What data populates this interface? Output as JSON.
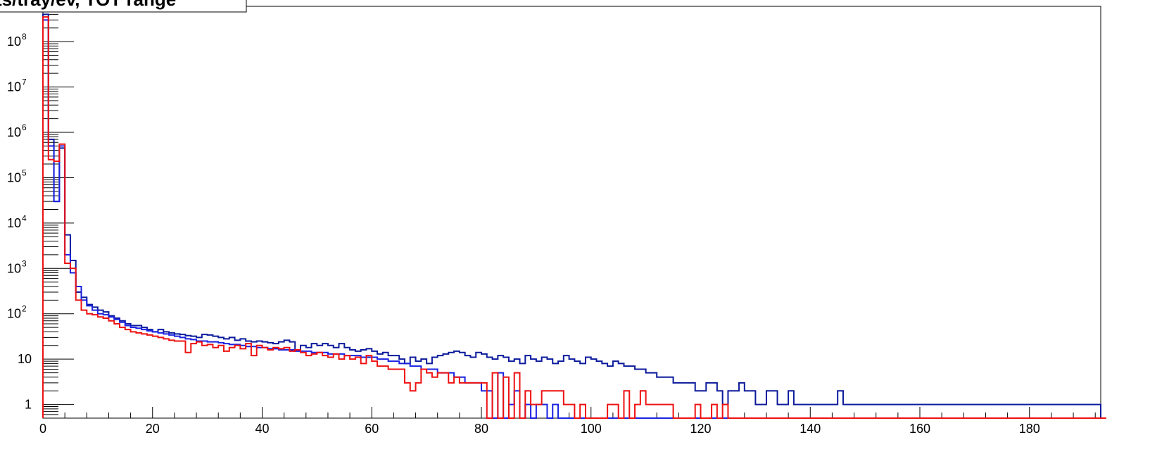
{
  "chart_data": {
    "type": "histogram",
    "title": "ts/tray/ev, TOT range",
    "xlabel": "",
    "ylabel": "",
    "log_y": true,
    "xlim": [
      0,
      193
    ],
    "ylim": [
      0.5,
      600000000
    ],
    "grid": false,
    "legend": "none",
    "x_ticks": [
      0,
      20,
      40,
      60,
      80,
      100,
      120,
      140,
      160,
      180
    ],
    "y_ticks": [
      {
        "value": 1,
        "label": "1",
        "exp": ""
      },
      {
        "value": 10,
        "label": "10",
        "exp": ""
      },
      {
        "value": 100,
        "label": "10",
        "exp": "2"
      },
      {
        "value": 1000,
        "label": "10",
        "exp": "3"
      },
      {
        "value": 10000,
        "label": "10",
        "exp": "4"
      },
      {
        "value": 100000,
        "label": "10",
        "exp": "5"
      },
      {
        "value": 1000000,
        "label": "10",
        "exp": "6"
      },
      {
        "value": 10000000,
        "label": "10",
        "exp": "7"
      },
      {
        "value": 100000000,
        "label": "10",
        "exp": "8"
      }
    ],
    "bin_width": 1,
    "series": [
      {
        "color": "#0b1a9c",
        "values": [
          400000000,
          700000,
          30000,
          450000,
          5500,
          1500,
          300,
          230,
          160,
          140,
          120,
          110,
          90,
          80,
          70,
          60,
          55,
          55,
          50,
          45,
          40,
          45,
          40,
          38,
          36,
          35,
          33,
          32,
          30,
          35,
          34,
          32,
          30,
          28,
          30,
          26,
          28,
          25,
          24,
          25,
          24,
          23,
          22,
          24,
          26,
          24,
          16,
          20,
          18,
          22,
          20,
          22,
          20,
          18,
          22,
          18,
          16,
          15,
          16,
          17,
          15,
          13,
          14,
          12,
          12,
          10,
          8,
          11,
          9,
          10,
          8,
          11,
          12,
          13,
          14,
          15,
          14,
          12,
          11,
          14,
          13,
          11,
          10,
          12,
          11,
          9,
          10,
          8,
          12,
          10,
          9,
          11,
          10,
          8,
          9,
          12,
          10,
          9,
          8,
          11,
          10,
          9,
          8,
          7,
          9,
          8,
          7,
          7,
          6,
          6,
          5,
          5,
          4,
          4,
          4,
          3,
          3,
          3,
          3,
          2,
          2,
          3,
          3,
          2,
          1,
          2,
          2,
          3,
          2,
          2,
          1,
          1,
          2,
          2,
          1,
          1,
          2,
          1,
          1,
          1,
          1,
          1,
          1,
          1,
          1,
          2,
          1,
          1,
          1,
          1,
          1,
          1,
          1,
          1,
          1,
          1,
          1,
          1,
          1,
          1,
          1,
          1,
          1,
          1,
          1,
          1,
          1,
          1,
          1,
          1,
          1,
          1,
          1,
          1,
          1,
          1,
          1,
          1,
          1,
          1,
          1,
          1,
          1,
          1,
          1,
          1,
          1,
          1,
          1,
          1,
          1,
          1,
          1
        ]
      },
      {
        "color": "#1a22e0",
        "values": [
          300000000,
          500000,
          30000,
          500000,
          2000,
          800,
          400,
          200,
          150,
          120,
          100,
          95,
          85,
          75,
          65,
          55,
          50,
          48,
          45,
          42,
          40,
          38,
          36,
          34,
          32,
          30,
          28,
          27,
          25,
          25,
          24,
          24,
          23,
          22,
          21,
          21,
          20,
          19,
          19,
          18,
          18,
          17,
          17,
          16,
          16,
          16,
          15,
          15,
          15,
          14,
          14,
          14,
          13,
          13,
          13,
          12,
          12,
          12,
          11,
          11,
          11,
          10,
          10,
          9,
          9,
          8,
          8,
          7,
          7,
          6,
          6,
          6,
          5,
          5,
          5,
          4,
          4,
          3,
          3,
          3,
          2,
          2,
          0,
          5,
          0,
          1,
          2,
          0,
          1,
          0,
          1,
          1,
          0,
          1,
          0,
          0,
          0,
          0,
          0,
          0,
          0,
          0,
          0,
          0,
          0,
          0,
          0,
          0,
          0,
          0,
          0,
          0,
          0,
          0,
          0,
          0,
          0,
          0,
          0,
          0,
          0,
          0,
          0,
          0,
          0,
          0,
          0,
          0,
          0,
          0,
          0,
          0,
          0,
          0,
          0,
          0,
          0,
          0,
          0,
          0,
          0,
          0,
          0,
          0,
          0,
          0,
          0,
          0,
          0,
          0,
          0,
          0,
          0,
          0,
          0,
          0,
          0,
          0,
          0,
          0,
          0,
          0,
          0,
          0,
          0,
          0,
          0,
          0,
          0,
          0,
          0,
          0,
          0,
          0,
          0,
          0,
          0,
          0,
          0,
          0,
          0,
          0,
          0,
          0,
          0,
          0,
          0,
          0,
          0,
          0,
          0,
          0,
          0
        ]
      },
      {
        "color": "#ee1111",
        "values": [
          350000000,
          250000,
          230000,
          550000,
          1300,
          1000,
          200,
          120,
          100,
          95,
          85,
          80,
          70,
          60,
          50,
          45,
          40,
          38,
          36,
          34,
          32,
          30,
          28,
          26,
          25,
          25,
          14,
          22,
          24,
          20,
          21,
          18,
          20,
          15,
          18,
          20,
          17,
          22,
          12,
          20,
          18,
          16,
          18,
          17,
          18,
          15,
          16,
          14,
          12,
          13,
          14,
          12,
          11,
          13,
          10,
          12,
          10,
          11,
          8,
          12,
          9,
          7,
          7,
          6,
          6,
          6,
          3,
          2,
          3,
          6,
          5,
          4,
          5,
          5,
          3,
          4,
          3,
          3,
          3,
          3,
          3,
          0,
          5,
          0,
          4,
          0,
          5,
          0,
          2,
          1,
          1,
          2,
          2,
          2,
          2,
          1,
          1,
          0,
          1,
          0,
          0,
          0,
          0,
          1,
          1,
          0,
          2,
          0,
          1,
          2,
          1,
          1,
          1,
          1,
          1,
          0,
          0,
          0,
          0,
          1,
          0,
          0,
          1,
          0,
          1,
          0,
          0,
          0,
          0,
          0,
          0,
          0,
          0,
          0,
          0,
          0,
          0,
          0,
          0,
          0,
          0,
          0,
          0,
          0,
          0,
          0,
          0,
          0,
          0,
          0,
          0,
          0,
          0,
          0,
          0,
          0,
          0,
          0,
          0,
          0,
          0,
          0,
          0,
          0,
          0,
          0,
          0,
          0,
          0,
          0,
          0,
          0,
          0,
          0,
          0,
          0,
          0,
          0,
          0,
          0,
          0,
          0,
          0,
          0,
          0,
          0,
          0,
          0,
          0,
          0,
          0,
          0,
          0,
          0
        ]
      }
    ]
  }
}
